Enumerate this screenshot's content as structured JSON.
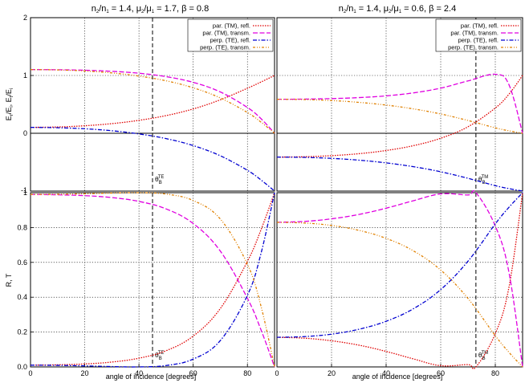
{
  "colors": {
    "par_refl": "#e00000",
    "par_trans": "#e000e0",
    "perp_refl": "#0000d0",
    "perp_trans": "#e08000"
  },
  "chart_data": [
    {
      "type": "line",
      "panel": "top-left",
      "title": {
        "base": "n",
        "sub1": "2",
        "slash": "/n",
        "sub2": "1",
        "mid": " = 1.4, μ",
        "sub3": "2",
        "slash2": "/μ",
        "sub4": "1",
        "tail": " = 1.7, β = 0.8"
      },
      "n_ratio": 1.4,
      "mu_ratio": 1.7,
      "beta": 0.8,
      "ylabel": {
        "p1": "E",
        "s1": "r",
        "p2": "/E",
        "s2": "i",
        "p3": ", E",
        "s3": "t",
        "p4": "/E",
        "s4": "i"
      },
      "xlabel": "",
      "xlim": [
        0,
        90
      ],
      "ylim": [
        -1,
        2
      ],
      "yticks": [
        "2",
        "1",
        "0",
        "-1"
      ],
      "xticks": [],
      "grid": true,
      "brewster": {
        "angle": 45,
        "base": "θ",
        "sub": "B",
        "sup": "TE"
      },
      "legend_position": "top-right",
      "series": [
        {
          "name": "par. (TM), refl.",
          "key": "par_refl",
          "x": [
            0,
            10,
            20,
            30,
            40,
            50,
            60,
            70,
            80,
            85,
            90
          ],
          "y": [
            0.102,
            0.109,
            0.13,
            0.167,
            0.224,
            0.306,
            0.421,
            0.579,
            0.779,
            0.887,
            1.0
          ]
        },
        {
          "name": "par. (TM), transm.",
          "key": "par_trans",
          "x": [
            0,
            10,
            20,
            30,
            40,
            50,
            60,
            70,
            80,
            85,
            90
          ],
          "y": [
            1.102,
            1.099,
            1.09,
            1.072,
            1.039,
            0.98,
            0.881,
            0.715,
            0.446,
            0.253,
            0.0
          ]
        },
        {
          "name": "perp. (TE), refl.",
          "key": "perp_refl",
          "x": [
            0,
            10,
            20,
            30,
            40,
            50,
            60,
            70,
            80,
            85,
            90
          ],
          "y": [
            0.102,
            0.096,
            0.078,
            0.044,
            -0.011,
            -0.092,
            -0.213,
            -0.389,
            -0.641,
            -0.807,
            -1.0
          ]
        },
        {
          "name": "perp. (TE), transm.",
          "key": "perp_trans",
          "x": [
            0,
            10,
            20,
            30,
            40,
            50,
            60,
            70,
            80,
            85,
            90
          ],
          "y": [
            1.102,
            1.096,
            1.078,
            1.044,
            0.989,
            0.908,
            0.787,
            0.611,
            0.359,
            0.193,
            0.0
          ]
        }
      ]
    },
    {
      "type": "line",
      "panel": "top-right",
      "title": {
        "base": "n",
        "sub1": "2",
        "slash": "/n",
        "sub2": "1",
        "mid": " = 1.4, μ",
        "sub3": "2",
        "slash2": "/μ",
        "sub4": "1",
        "tail": " = 0.6, β = 2.4"
      },
      "n_ratio": 1.4,
      "mu_ratio": 0.6,
      "beta": 2.4,
      "xlabel": "",
      "xlim": [
        0,
        90
      ],
      "ylim": [
        -1,
        2
      ],
      "yticks": [],
      "xticks": [],
      "grid": true,
      "brewster": {
        "angle": 72.9,
        "base": "θ",
        "sub": "B",
        "sup": "TM"
      },
      "legend_position": "top-right",
      "series": [
        {
          "name": "par. (TM), refl.",
          "key": "par_refl",
          "x": [
            0,
            10,
            20,
            30,
            40,
            50,
            60,
            70,
            80,
            85,
            90
          ],
          "y": [
            -0.412,
            -0.406,
            -0.387,
            -0.353,
            -0.298,
            -0.214,
            -0.086,
            0.113,
            0.437,
            0.676,
            1.0
          ]
        },
        {
          "name": "par. (TM), transm.",
          "key": "par_trans",
          "x": [
            0,
            10,
            20,
            30,
            40,
            50,
            60,
            70,
            80,
            85,
            90
          ],
          "y": [
            0.588,
            0.591,
            0.6,
            0.617,
            0.647,
            0.699,
            0.781,
            0.906,
            1.021,
            0.841,
            0.0
          ]
        },
        {
          "name": "perp. (TE), refl.",
          "key": "perp_refl",
          "x": [
            0,
            10,
            20,
            30,
            40,
            50,
            60,
            70,
            80,
            85,
            90
          ],
          "y": [
            -0.412,
            -0.417,
            -0.434,
            -0.465,
            -0.512,
            -0.578,
            -0.666,
            -0.779,
            -0.906,
            -0.957,
            -1.0
          ]
        },
        {
          "name": "perp. (TE), transm.",
          "key": "perp_trans",
          "x": [
            0,
            10,
            20,
            30,
            40,
            50,
            60,
            70,
            80,
            85,
            90
          ],
          "y": [
            0.588,
            0.583,
            0.566,
            0.535,
            0.488,
            0.422,
            0.334,
            0.221,
            0.094,
            0.043,
            0.0
          ]
        }
      ]
    },
    {
      "type": "line",
      "panel": "bottom-left",
      "ylabel": {
        "text": "R, T"
      },
      "xlabel": "angle of incidence [degrees]",
      "xlim": [
        0,
        90
      ],
      "ylim": [
        0,
        1
      ],
      "yticks": [
        "1",
        "0.8",
        "0.6",
        "0.4",
        "0.2",
        "0.0"
      ],
      "xticks": [
        "0",
        "20",
        "40",
        "60",
        "80"
      ],
      "grid": true,
      "brewster": {
        "angle": 45,
        "base": "θ",
        "sub": "B",
        "sup": "TE"
      },
      "series": [
        {
          "name": "par. (TM), refl.",
          "key": "par_refl",
          "x": [
            0,
            10,
            20,
            30,
            40,
            50,
            60,
            70,
            80,
            85,
            90
          ],
          "y": [
            0.01,
            0.012,
            0.017,
            0.028,
            0.05,
            0.093,
            0.177,
            0.335,
            0.606,
            0.787,
            1.0
          ]
        },
        {
          "name": "par. (TM), transm.",
          "key": "par_trans",
          "x": [
            0,
            10,
            20,
            30,
            40,
            50,
            60,
            70,
            80,
            85,
            90
          ],
          "y": [
            0.99,
            0.988,
            0.983,
            0.972,
            0.95,
            0.907,
            0.823,
            0.665,
            0.394,
            0.213,
            0.0
          ]
        },
        {
          "name": "perp. (TE), refl.",
          "key": "perp_refl",
          "x": [
            0,
            10,
            20,
            30,
            40,
            50,
            60,
            70,
            80,
            85,
            90
          ],
          "y": [
            0.01,
            0.009,
            0.006,
            0.002,
            0.0001,
            0.008,
            0.045,
            0.151,
            0.411,
            0.651,
            1.0
          ]
        },
        {
          "name": "perp. (TE), transm.",
          "key": "perp_trans",
          "x": [
            0,
            10,
            20,
            30,
            40,
            50,
            60,
            70,
            80,
            85,
            90
          ],
          "y": [
            0.99,
            0.991,
            0.994,
            0.998,
            0.9999,
            0.992,
            0.955,
            0.849,
            0.589,
            0.349,
            0.0
          ]
        }
      ]
    },
    {
      "type": "line",
      "panel": "bottom-right",
      "xlabel": "angle of incidence [degrees]",
      "xlim": [
        0,
        90
      ],
      "ylim": [
        0,
        1
      ],
      "yticks": [],
      "xticks": [
        "0",
        "20",
        "40",
        "60",
        "80"
      ],
      "grid": true,
      "brewster": {
        "angle": 72.9,
        "base": "θ",
        "sub": "B",
        "sup": "TM"
      },
      "series": [
        {
          "name": "par. (TM), refl.",
          "key": "par_refl",
          "x": [
            0,
            10,
            20,
            30,
            40,
            50,
            60,
            70,
            72.9,
            80,
            85,
            90
          ],
          "y": [
            0.17,
            0.165,
            0.15,
            0.125,
            0.089,
            0.046,
            0.007,
            0.013,
            0.0,
            0.191,
            0.457,
            1.0
          ]
        },
        {
          "name": "par. (TM), transm.",
          "key": "par_trans",
          "x": [
            0,
            10,
            20,
            30,
            40,
            50,
            60,
            70,
            72.9,
            80,
            85,
            90
          ],
          "y": [
            0.83,
            0.835,
            0.85,
            0.875,
            0.911,
            0.954,
            0.993,
            0.987,
            1.0,
            0.809,
            0.543,
            0.0
          ]
        },
        {
          "name": "perp. (TE), refl.",
          "key": "perp_refl",
          "x": [
            0,
            10,
            20,
            30,
            40,
            50,
            60,
            70,
            80,
            85,
            90
          ],
          "y": [
            0.17,
            0.174,
            0.188,
            0.216,
            0.262,
            0.334,
            0.444,
            0.607,
            0.821,
            0.916,
            1.0
          ]
        },
        {
          "name": "perp. (TE), transm.",
          "key": "perp_trans",
          "x": [
            0,
            10,
            20,
            30,
            40,
            50,
            60,
            70,
            80,
            85,
            90
          ],
          "y": [
            0.83,
            0.826,
            0.812,
            0.784,
            0.738,
            0.666,
            0.556,
            0.393,
            0.179,
            0.084,
            0.0
          ]
        }
      ]
    }
  ]
}
